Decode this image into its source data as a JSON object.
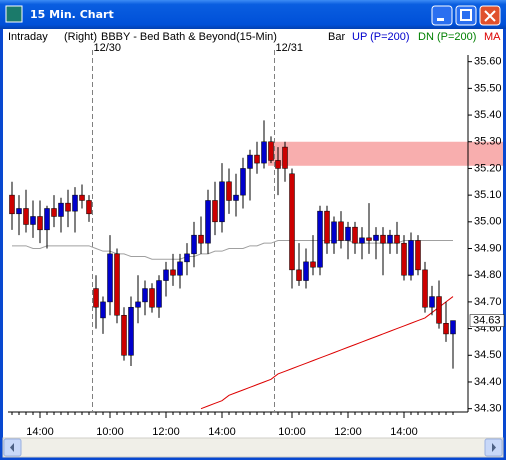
{
  "window": {
    "title": "15 Min. Chart"
  },
  "chart_data": {
    "type": "candlestick",
    "header": {
      "mode": "Intraday",
      "side": "(Right)",
      "symbol": "BBBY - Bed Bath & Beyond",
      "interval": "(15-Min)"
    },
    "legend": [
      {
        "text": "Bar",
        "color": "#000000"
      },
      {
        "text": "UP (P=200)",
        "color": "#0000cc"
      },
      {
        "text": "DN (P=200)",
        "color": "#008000"
      }
    ],
    "categories": [
      null,
      null,
      null,
      null,
      "14:00",
      null,
      null,
      null,
      null,
      null,
      null,
      null,
      null,
      null,
      "10:00",
      null,
      null,
      null,
      null,
      null,
      null,
      null,
      "12:00",
      null,
      null,
      null,
      null,
      null,
      null,
      null,
      "14:00",
      null,
      null,
      null,
      null,
      null,
      null,
      null,
      null,
      null,
      "10:00",
      null,
      null,
      null,
      null,
      null,
      null,
      null,
      "12:00",
      null,
      null,
      null,
      null,
      null,
      null,
      null,
      "14:00",
      null,
      null,
      null,
      null,
      null,
      null,
      null
    ],
    "date_markers": [
      {
        "index": 12,
        "label": "12/30"
      },
      {
        "index": 38,
        "label": "12/31"
      }
    ],
    "open": [
      35.1,
      35.03,
      35.05,
      34.99,
      35.02,
      34.97,
      35.05,
      35.02,
      35.07,
      35.04,
      35.1,
      35.08,
      34.75,
      34.64,
      34.7,
      34.88,
      34.65,
      34.5,
      34.68,
      34.7,
      34.75,
      34.68,
      34.78,
      34.82,
      34.8,
      34.85,
      34.88,
      34.95,
      34.92,
      35.08,
      35.0,
      35.15,
      35.08,
      35.1,
      35.2,
      35.25,
      35.22,
      35.3,
      35.23,
      35.28,
      35.18,
      34.82,
      34.78,
      34.85,
      34.83,
      35.04,
      34.92,
      35.0,
      34.93,
      34.98,
      34.92,
      34.94,
      34.93,
      34.95,
      34.92,
      34.95,
      34.92,
      34.8,
      34.93,
      34.82,
      34.68,
      34.72,
      34.62,
      34.58
    ],
    "high": [
      35.15,
      35.1,
      35.12,
      35.08,
      35.08,
      35.06,
      35.1,
      35.09,
      35.12,
      35.13,
      35.14,
      35.1,
      34.8,
      34.72,
      34.95,
      34.9,
      34.68,
      34.72,
      34.8,
      34.78,
      34.77,
      34.8,
      34.85,
      34.88,
      34.88,
      34.92,
      35.0,
      35.02,
      35.12,
      35.15,
      35.22,
      35.2,
      35.18,
      35.24,
      35.27,
      35.3,
      35.38,
      35.32,
      35.28,
      35.3,
      35.2,
      34.92,
      34.9,
      34.95,
      35.06,
      35.06,
      35.02,
      35.04,
      35.0,
      35.0,
      34.98,
      35.07,
      34.98,
      34.98,
      34.97,
      35.0,
      34.95,
      34.96,
      34.95,
      34.85,
      34.76,
      34.78,
      34.7,
      34.63
    ],
    "low": [
      34.97,
      34.95,
      34.96,
      34.94,
      34.92,
      34.9,
      34.98,
      34.96,
      34.98,
      34.96,
      35.05,
      35.0,
      34.6,
      34.58,
      34.65,
      34.62,
      34.48,
      34.46,
      34.62,
      34.65,
      34.66,
      34.64,
      34.72,
      34.76,
      34.75,
      34.8,
      34.83,
      34.88,
      34.88,
      34.95,
      34.96,
      35.03,
      35.02,
      35.05,
      35.08,
      35.18,
      35.2,
      35.22,
      35.1,
      35.15,
      34.75,
      34.76,
      34.75,
      34.8,
      34.8,
      34.88,
      34.88,
      34.9,
      34.86,
      34.88,
      34.86,
      34.88,
      34.86,
      34.8,
      34.88,
      34.88,
      34.78,
      34.78,
      34.8,
      34.66,
      34.65,
      34.6,
      34.55,
      34.45
    ],
    "close": [
      35.03,
      35.05,
      34.99,
      35.02,
      34.97,
      35.05,
      35.02,
      35.07,
      35.04,
      35.1,
      35.08,
      35.03,
      34.68,
      34.7,
      34.88,
      34.65,
      34.5,
      34.68,
      34.7,
      34.75,
      34.68,
      34.78,
      34.82,
      34.8,
      34.85,
      34.88,
      34.95,
      34.92,
      35.08,
      35.0,
      35.15,
      35.08,
      35.1,
      35.2,
      35.25,
      35.22,
      35.3,
      35.23,
      35.2,
      35.2,
      34.82,
      34.78,
      34.85,
      34.83,
      35.04,
      34.92,
      35.0,
      34.93,
      34.98,
      34.92,
      34.94,
      34.93,
      34.95,
      34.92,
      34.95,
      34.92,
      34.8,
      34.93,
      34.82,
      34.68,
      34.72,
      34.62,
      34.58,
      34.63
    ],
    "up_color": "#0000cc",
    "down_color": "#cc0000",
    "lines": [
      {
        "name": "MA",
        "color": "#dd0000",
        "values": [
          null,
          null,
          null,
          null,
          null,
          null,
          null,
          null,
          null,
          null,
          null,
          null,
          null,
          null,
          null,
          null,
          null,
          null,
          null,
          null,
          null,
          null,
          null,
          null,
          null,
          null,
          null,
          34.3,
          34.31,
          34.32,
          34.33,
          34.35,
          34.36,
          34.37,
          34.38,
          34.39,
          34.4,
          34.41,
          34.43,
          34.44,
          34.45,
          34.46,
          34.47,
          34.48,
          34.49,
          34.5,
          34.51,
          34.52,
          34.53,
          34.54,
          34.55,
          34.56,
          34.57,
          34.58,
          34.59,
          34.6,
          34.61,
          34.62,
          34.63,
          34.64,
          34.66,
          34.68,
          34.7,
          34.72
        ]
      },
      {
        "color": "#a0a0a0",
        "values": [
          34.91,
          34.91,
          34.91,
          34.9,
          34.9,
          34.91,
          34.91,
          34.91,
          34.91,
          34.91,
          34.91,
          34.91,
          34.9,
          34.89,
          34.89,
          34.88,
          34.88,
          34.87,
          34.87,
          34.87,
          34.86,
          34.86,
          34.86,
          34.86,
          34.86,
          34.87,
          34.87,
          34.88,
          34.88,
          34.89,
          34.89,
          34.9,
          34.9,
          34.9,
          34.91,
          34.91,
          34.92,
          34.92,
          34.93,
          34.93,
          34.93,
          34.93,
          34.93,
          34.93,
          34.93,
          34.93,
          34.93,
          34.93,
          34.93,
          34.92,
          34.92,
          34.92,
          34.92,
          34.92,
          34.92,
          34.92,
          34.93,
          34.93,
          34.93,
          34.93,
          34.93,
          34.93,
          34.93,
          34.93
        ]
      }
    ],
    "zone": {
      "low": 35.21,
      "high": 35.3,
      "start": 37,
      "color": "#f7a0a0"
    },
    "ylim": [
      34.2875,
      35.625
    ],
    "yticks": [
      {
        "value": 35.6,
        "label": "35.60"
      },
      {
        "value": 35.5,
        "label": "35.50"
      },
      {
        "value": 35.4,
        "label": "35.40"
      },
      {
        "value": 35.3,
        "label": "35.30"
      },
      {
        "value": 35.2,
        "label": "35.20"
      },
      {
        "value": 35.1,
        "label": "35.10"
      },
      {
        "value": 35,
        "label": "35.00"
      },
      {
        "value": 34.9,
        "label": "34.90"
      },
      {
        "value": 34.8,
        "label": "34.80"
      },
      {
        "value": 34.7,
        "label": "34.70"
      },
      {
        "value": 34.6,
        "label": "34.60"
      },
      {
        "value": 34.5,
        "label": "34.50"
      },
      {
        "value": 34.4,
        "label": "34.40"
      },
      {
        "value": 34.3,
        "label": "34.30"
      }
    ]
  }
}
